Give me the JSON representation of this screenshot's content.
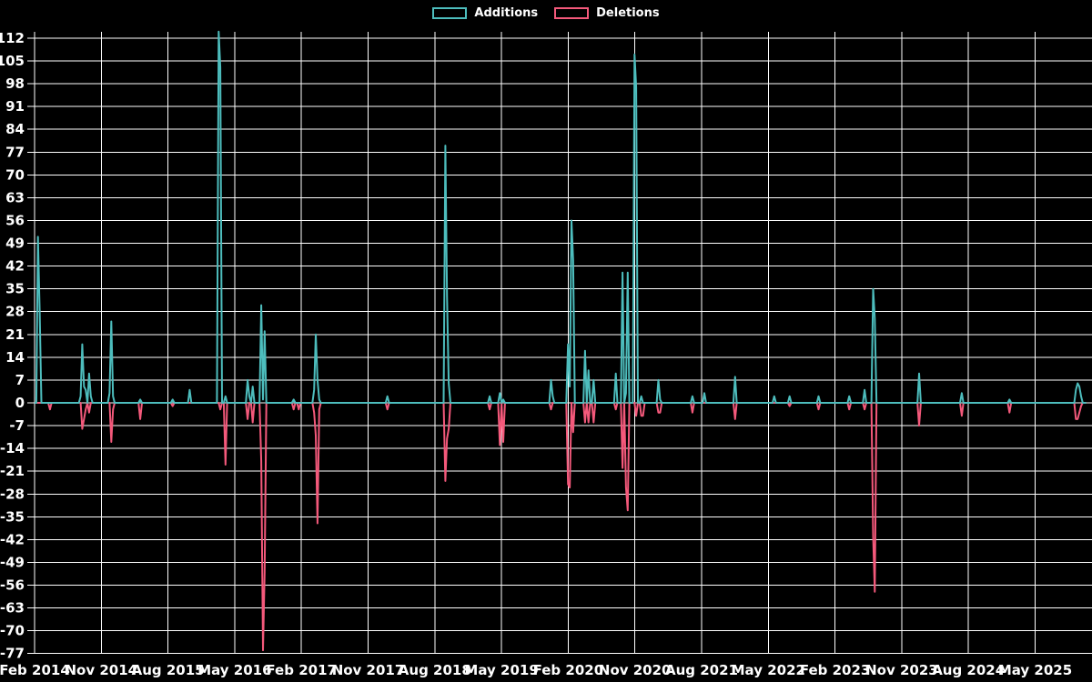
{
  "chart": {
    "legend": {
      "additions": "Additions",
      "deletions": "Deletions"
    },
    "colors": {
      "background": "#000000",
      "grid": "#ffffff",
      "text": "#ffffff",
      "additions": "#4dbdbd",
      "deletions": "#f4597b"
    }
  },
  "chart_data": {
    "type": "line",
    "title": "",
    "grid": true,
    "legend_position": "top-center",
    "baseline": 0,
    "y_axis": {
      "min": -77,
      "max": 112,
      "step": 7,
      "ticks": [
        -77,
        -70,
        -63,
        -56,
        -49,
        -42,
        -35,
        -28,
        -21,
        -14,
        -7,
        0,
        7,
        14,
        21,
        28,
        35,
        42,
        49,
        56,
        63,
        70,
        77,
        84,
        91,
        98,
        105,
        112
      ]
    },
    "x_axis": {
      "tick_labels": [
        "Feb 2014",
        "Nov 2014",
        "Aug 2015",
        "May 2016",
        "Feb 2017",
        "Nov 2017",
        "Aug 2018",
        "May 2019",
        "Feb 2020",
        "Nov 2020",
        "Aug 2021",
        "May 2022",
        "Feb 2023",
        "Nov 2023",
        "Aug 2024",
        "May 2025"
      ]
    },
    "series": [
      {
        "name": "Additions",
        "color": "#4dbdbd",
        "points": {
          "2014-02-16": 51,
          "2014-02-23": 28,
          "2014-08-10": 2,
          "2014-08-17": 18,
          "2014-08-24": 5,
          "2014-08-31": 4,
          "2014-09-14": 9,
          "2014-09-21": 2,
          "2014-12-07": 3,
          "2014-12-14": 25,
          "2014-12-21": 2,
          "2015-04-12": 1,
          "2015-08-23": 1,
          "2015-11-01": 4,
          "2016-02-28": 114,
          "2016-03-06": 103,
          "2016-03-27": 2,
          "2016-06-26": 7,
          "2016-07-03": 2,
          "2016-07-17": 5,
          "2016-08-21": 30,
          "2016-08-28": 1,
          "2016-09-04": 22,
          "2017-01-01": 1,
          "2017-03-26": 4,
          "2017-04-02": 21,
          "2017-04-09": 7,
          "2017-04-16": 1,
          "2018-01-21": 2,
          "2018-09-16": 79,
          "2018-09-23": 33,
          "2018-09-30": 6,
          "2019-03-10": 2,
          "2019-04-28": 3,
          "2019-05-05": 1,
          "2019-11-24": 7,
          "2019-12-01": 2,
          "2020-02-02": 18,
          "2020-02-09": 5,
          "2020-02-16": 56,
          "2020-02-23": 44,
          "2020-04-12": 16,
          "2020-04-26": 10,
          "2020-05-17": 7,
          "2020-08-16": 9,
          "2020-09-13": 40,
          "2020-09-27": 3,
          "2020-10-04": 40,
          "2020-11-01": 107,
          "2020-11-08": 97,
          "2020-11-29": 2,
          "2021-02-07": 7,
          "2021-02-14": 1,
          "2021-06-27": 2,
          "2021-08-15": 3,
          "2021-12-19": 8,
          "2022-05-22": 2,
          "2022-07-31": 2,
          "2022-11-27": 2,
          "2023-04-02": 2,
          "2023-06-04": 4,
          "2023-07-02": 35,
          "2023-07-09": 26,
          "2024-01-14": 9,
          "2024-07-07": 3,
          "2025-01-19": 1,
          "2025-10-19": 4,
          "2025-10-26": 6,
          "2025-11-02": 5,
          "2025-11-09": 2
        }
      },
      {
        "name": "Deletions",
        "color": "#f4597b",
        "points": {
          "2014-04-06": -2,
          "2014-08-17": -8,
          "2014-08-24": -5,
          "2014-08-31": -2,
          "2014-09-14": -3,
          "2014-12-14": -12,
          "2014-12-21": -2,
          "2015-04-12": -5,
          "2015-08-23": -1,
          "2016-03-06": -2,
          "2016-03-27": -19,
          "2016-06-26": -5,
          "2016-07-17": -6,
          "2016-08-21": -18,
          "2016-08-28": -76,
          "2016-09-04": -52,
          "2017-01-01": -2,
          "2017-01-22": -2,
          "2017-03-26": -3,
          "2017-04-02": -10,
          "2017-04-09": -37,
          "2017-04-16": -2,
          "2018-01-21": -2,
          "2018-09-16": -24,
          "2018-09-23": -11,
          "2018-09-30": -8,
          "2019-03-10": -2,
          "2019-04-28": -13,
          "2019-05-05": -12,
          "2019-11-24": -2,
          "2020-02-02": -25,
          "2020-02-09": -26,
          "2020-02-23": -9,
          "2020-04-12": -6,
          "2020-04-26": -6,
          "2020-05-17": -6,
          "2020-08-16": -2,
          "2020-09-13": -20,
          "2020-09-27": -26,
          "2020-10-04": -33,
          "2020-11-08": -4,
          "2020-11-29": -4,
          "2020-12-06": -4,
          "2021-02-07": -3,
          "2021-02-14": -3,
          "2021-06-27": -3,
          "2021-12-19": -5,
          "2022-07-31": -1,
          "2022-11-27": -2,
          "2023-04-02": -2,
          "2023-06-04": -2,
          "2023-07-02": -41,
          "2023-07-09": -58,
          "2024-01-14": -7,
          "2024-07-07": -4,
          "2025-01-19": -3,
          "2025-10-19": -5,
          "2025-10-26": -5,
          "2025-11-02": -3,
          "2025-11-09": -1
        }
      }
    ]
  }
}
